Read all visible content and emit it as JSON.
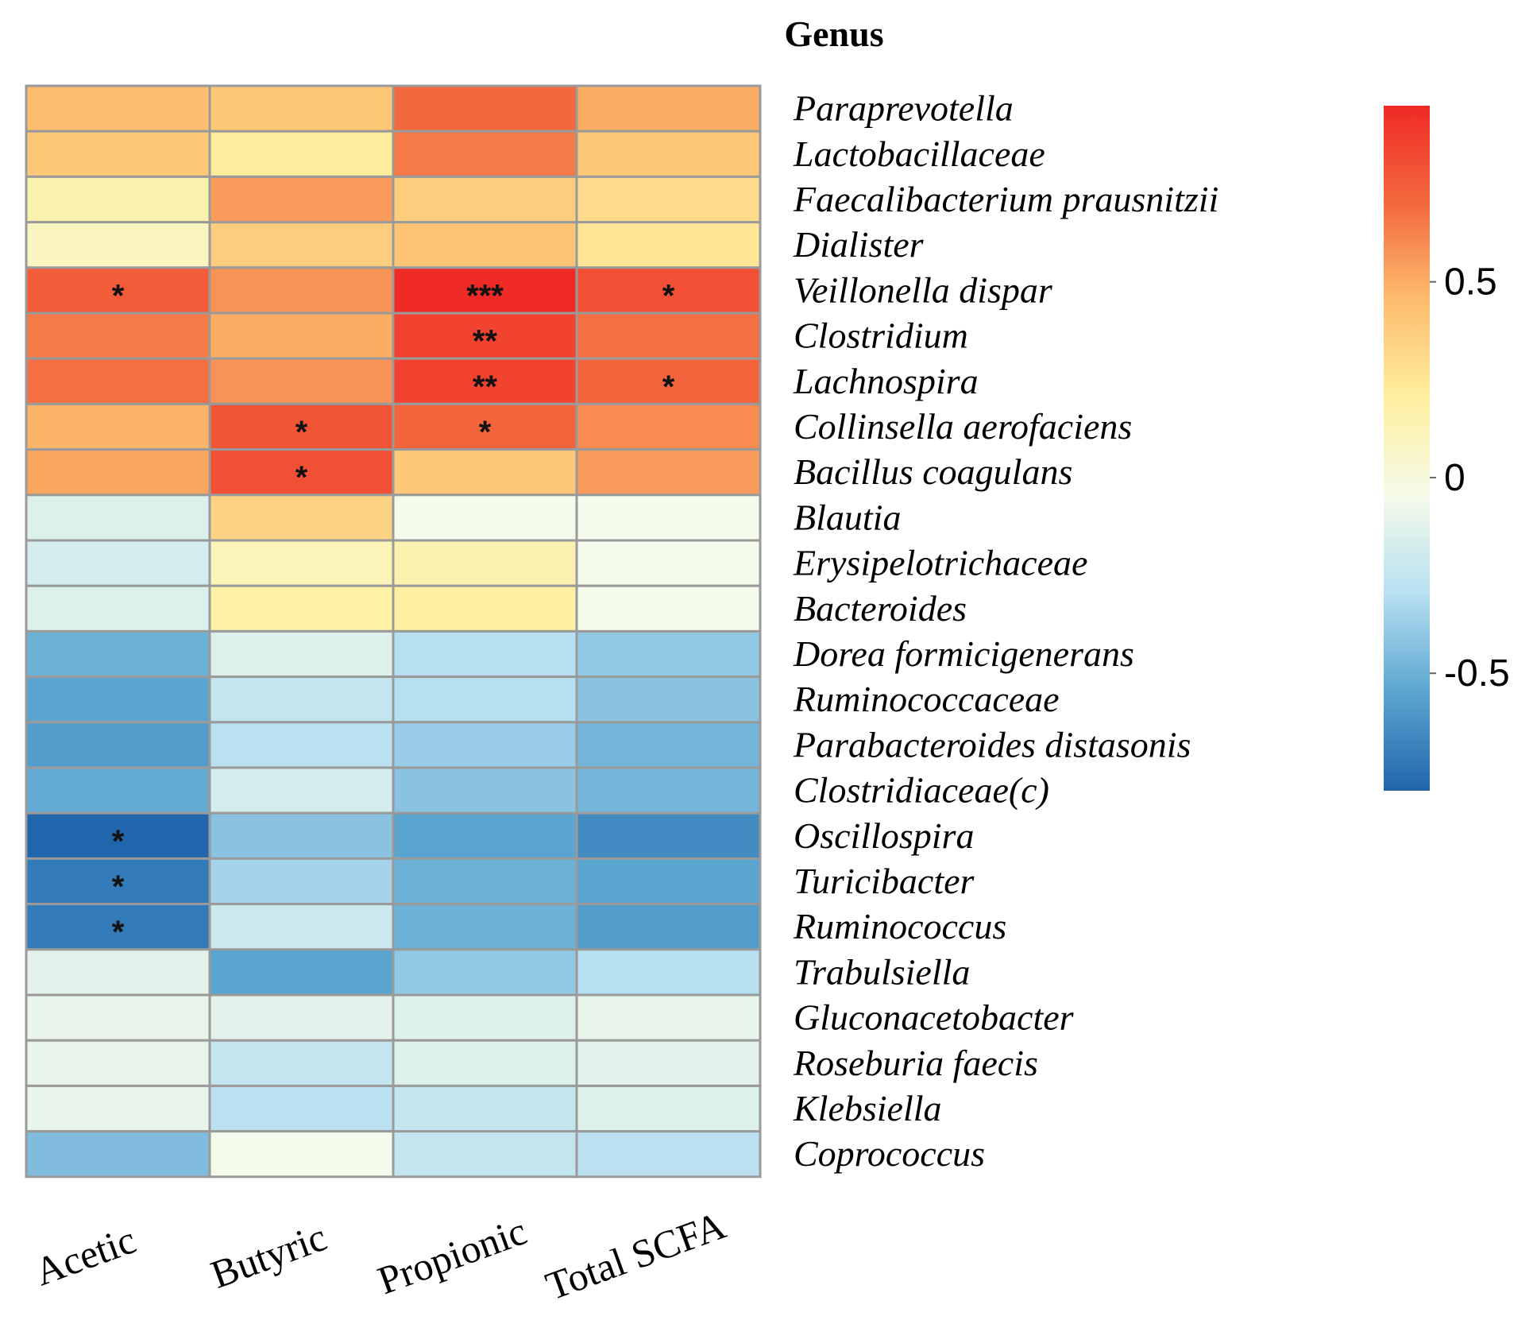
{
  "chart_data": {
    "type": "heatmap",
    "title": "Genus",
    "columns": [
      "Acetic",
      "Butyric",
      "Propionic",
      "Total SCFA"
    ],
    "rows": [
      "Paraprevotella",
      "Lactobacillaceae",
      "Faecalibacterium prausnitzii",
      "Dialister",
      "Veillonella dispar",
      "Clostridium",
      "Lachnospira",
      "Collinsella aerofaciens",
      "Bacillus coagulans",
      "Blautia",
      "Erysipelotrichaceae",
      "Bacteroides",
      "Dorea formicigenerans",
      "Ruminococcaceae",
      "Parabacteroides distasonis",
      "Clostridiaceae(c)",
      "Oscillospira",
      "Turicibacter",
      "Ruminococcus",
      "Trabulsiella",
      "Gluconacetobacter",
      "Roseburia faecis",
      "Klebsiella",
      "Coprococcus"
    ],
    "values": [
      [
        0.45,
        0.4,
        0.7,
        0.5
      ],
      [
        0.4,
        0.22,
        0.65,
        0.4
      ],
      [
        0.15,
        0.55,
        0.38,
        0.3
      ],
      [
        0.1,
        0.38,
        0.42,
        0.25
      ],
      [
        0.75,
        0.58,
        0.95,
        0.8
      ],
      [
        0.65,
        0.5,
        0.85,
        0.68
      ],
      [
        0.68,
        0.58,
        0.85,
        0.72
      ],
      [
        0.48,
        0.78,
        0.72,
        0.6
      ],
      [
        0.52,
        0.8,
        0.4,
        0.55
      ],
      [
        -0.15,
        0.35,
        -0.05,
        -0.05
      ],
      [
        -0.18,
        0.12,
        0.15,
        -0.05
      ],
      [
        -0.15,
        0.18,
        0.2,
        -0.05
      ],
      [
        -0.5,
        -0.15,
        -0.3,
        -0.4
      ],
      [
        -0.55,
        -0.25,
        -0.3,
        -0.42
      ],
      [
        -0.58,
        -0.28,
        -0.38,
        -0.48
      ],
      [
        -0.52,
        -0.18,
        -0.42,
        -0.48
      ],
      [
        -0.8,
        -0.42,
        -0.55,
        -0.65
      ],
      [
        -0.72,
        -0.35,
        -0.5,
        -0.55
      ],
      [
        -0.72,
        -0.22,
        -0.5,
        -0.58
      ],
      [
        -0.12,
        -0.55,
        -0.4,
        -0.3
      ],
      [
        -0.1,
        -0.12,
        -0.15,
        -0.1
      ],
      [
        -0.1,
        -0.25,
        -0.15,
        -0.12
      ],
      [
        -0.1,
        -0.28,
        -0.25,
        -0.15
      ],
      [
        -0.45,
        -0.05,
        -0.25,
        -0.28
      ]
    ],
    "significance": [
      [
        "",
        "",
        "",
        ""
      ],
      [
        "",
        "",
        "",
        ""
      ],
      [
        "",
        "",
        "",
        ""
      ],
      [
        "",
        "",
        "",
        ""
      ],
      [
        "*",
        "",
        "***",
        "*"
      ],
      [
        "",
        "",
        "**",
        ""
      ],
      [
        "",
        "",
        "**",
        "*"
      ],
      [
        "",
        "*",
        "*",
        ""
      ],
      [
        "",
        "*",
        "",
        ""
      ],
      [
        "",
        "",
        "",
        ""
      ],
      [
        "",
        "",
        "",
        ""
      ],
      [
        "",
        "",
        "",
        ""
      ],
      [
        "",
        "",
        "",
        ""
      ],
      [
        "",
        "",
        "",
        ""
      ],
      [
        "",
        "",
        "",
        ""
      ],
      [
        "",
        "",
        "",
        ""
      ],
      [
        "*",
        "",
        "",
        ""
      ],
      [
        "*",
        "",
        "",
        ""
      ],
      [
        "*",
        "",
        "",
        ""
      ],
      [
        "",
        "",
        "",
        ""
      ],
      [
        "",
        "",
        "",
        ""
      ],
      [
        "",
        "",
        "",
        ""
      ],
      [
        "",
        "",
        "",
        ""
      ],
      [
        "",
        "",
        "",
        ""
      ]
    ],
    "colorbar": {
      "range": [
        -0.8,
        0.95
      ],
      "ticks": [
        0.5,
        0,
        -0.5
      ],
      "tick_labels": [
        "0.5",
        "0",
        "-0.5"
      ],
      "colors": [
        "#2166ac",
        "#5aa5d0",
        "#b6dff0",
        "#f5fbea",
        "#fef0a0",
        "#fdbe6e",
        "#f3693e",
        "#ef2a26"
      ]
    },
    "legend_position": "right"
  }
}
